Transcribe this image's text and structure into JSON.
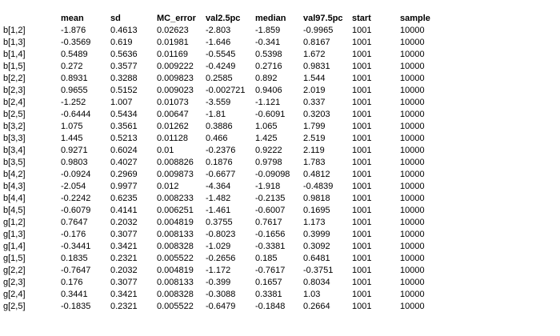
{
  "stats_table": {
    "headers": [
      "",
      "mean",
      "sd",
      "MC_error",
      "val2.5pc",
      "median",
      "val97.5pc",
      "start",
      "sample"
    ],
    "rows": [
      [
        "b[1,2]",
        "-1.876",
        "0.4613",
        "0.02623",
        "-2.803",
        "-1.859",
        "-0.9965",
        "1001",
        "10000"
      ],
      [
        "b[1,3]",
        "-0.3569",
        "0.619",
        "0.01981",
        "-1.646",
        "-0.341",
        "0.8167",
        "1001",
        "10000"
      ],
      [
        "b[1,4]",
        "0.5489",
        "0.5636",
        "0.01169",
        "-0.5545",
        "0.5398",
        "1.672",
        "1001",
        "10000"
      ],
      [
        "b[1,5]",
        "0.272",
        "0.3577",
        "0.009222",
        "-0.4249",
        "0.2716",
        "0.9831",
        "1001",
        "10000"
      ],
      [
        "b[2,2]",
        "0.8931",
        "0.3288",
        "0.009823",
        "0.2585",
        "0.892",
        "1.544",
        "1001",
        "10000"
      ],
      [
        "b[2,3]",
        "0.9655",
        "0.5152",
        "0.009023",
        "-0.002721",
        "0.9406",
        "2.019",
        "1001",
        "10000"
      ],
      [
        "b[2,4]",
        "-1.252",
        "1.007",
        "0.01073",
        "-3.559",
        "-1.121",
        "0.337",
        "1001",
        "10000"
      ],
      [
        "b[2,5]",
        "-0.6444",
        "0.5434",
        "0.00647",
        "-1.81",
        "-0.6091",
        "0.3203",
        "1001",
        "10000"
      ],
      [
        "b[3,2]",
        "1.075",
        "0.3561",
        "0.01262",
        "0.3886",
        "1.065",
        "1.799",
        "1001",
        "10000"
      ],
      [
        "b[3,3]",
        "1.445",
        "0.5213",
        "0.01128",
        "0.466",
        "1.425",
        "2.519",
        "1001",
        "10000"
      ],
      [
        "b[3,4]",
        "0.9271",
        "0.6024",
        "0.01",
        "-0.2376",
        "0.9222",
        "2.119",
        "1001",
        "10000"
      ],
      [
        "b[3,5]",
        "0.9803",
        "0.4027",
        "0.008826",
        "0.1876",
        "0.9798",
        "1.783",
        "1001",
        "10000"
      ],
      [
        "b[4,2]",
        "-0.0924",
        "0.2969",
        "0.009873",
        "-0.6677",
        "-0.09098",
        "0.4812",
        "1001",
        "10000"
      ],
      [
        "b[4,3]",
        "-2.054",
        "0.9977",
        "0.012",
        "-4.364",
        "-1.918",
        "-0.4839",
        "1001",
        "10000"
      ],
      [
        "b[4,4]",
        "-0.2242",
        "0.6235",
        "0.008233",
        "-1.482",
        "-0.2135",
        "0.9818",
        "1001",
        "10000"
      ],
      [
        "b[4,5]",
        "-0.6079",
        "0.4141",
        "0.006251",
        "-1.461",
        "-0.6007",
        "0.1695",
        "1001",
        "10000"
      ],
      [
        "g[1,2]",
        "0.7647",
        "0.2032",
        "0.004819",
        "0.3755",
        "0.7617",
        "1.173",
        "1001",
        "10000"
      ],
      [
        "g[1,3]",
        "-0.176",
        "0.3077",
        "0.008133",
        "-0.8023",
        "-0.1656",
        "0.3999",
        "1001",
        "10000"
      ],
      [
        "g[1,4]",
        "-0.3441",
        "0.3421",
        "0.008328",
        "-1.029",
        "-0.3381",
        "0.3092",
        "1001",
        "10000"
      ],
      [
        "g[1,5]",
        "0.1835",
        "0.2321",
        "0.005522",
        "-0.2656",
        "0.185",
        "0.6481",
        "1001",
        "10000"
      ],
      [
        "g[2,2]",
        "-0.7647",
        "0.2032",
        "0.004819",
        "-1.172",
        "-0.7617",
        "-0.3751",
        "1001",
        "10000"
      ],
      [
        "g[2,3]",
        "0.176",
        "0.3077",
        "0.008133",
        "-0.399",
        "0.1657",
        "0.8034",
        "1001",
        "10000"
      ],
      [
        "g[2,4]",
        "0.3441",
        "0.3421",
        "0.008328",
        "-0.3088",
        "0.3381",
        "1.03",
        "1001",
        "10000"
      ],
      [
        "g[2,5]",
        "-0.1835",
        "0.2321",
        "0.005522",
        "-0.6479",
        "-0.1848",
        "0.2664",
        "1001",
        "10000"
      ]
    ]
  }
}
